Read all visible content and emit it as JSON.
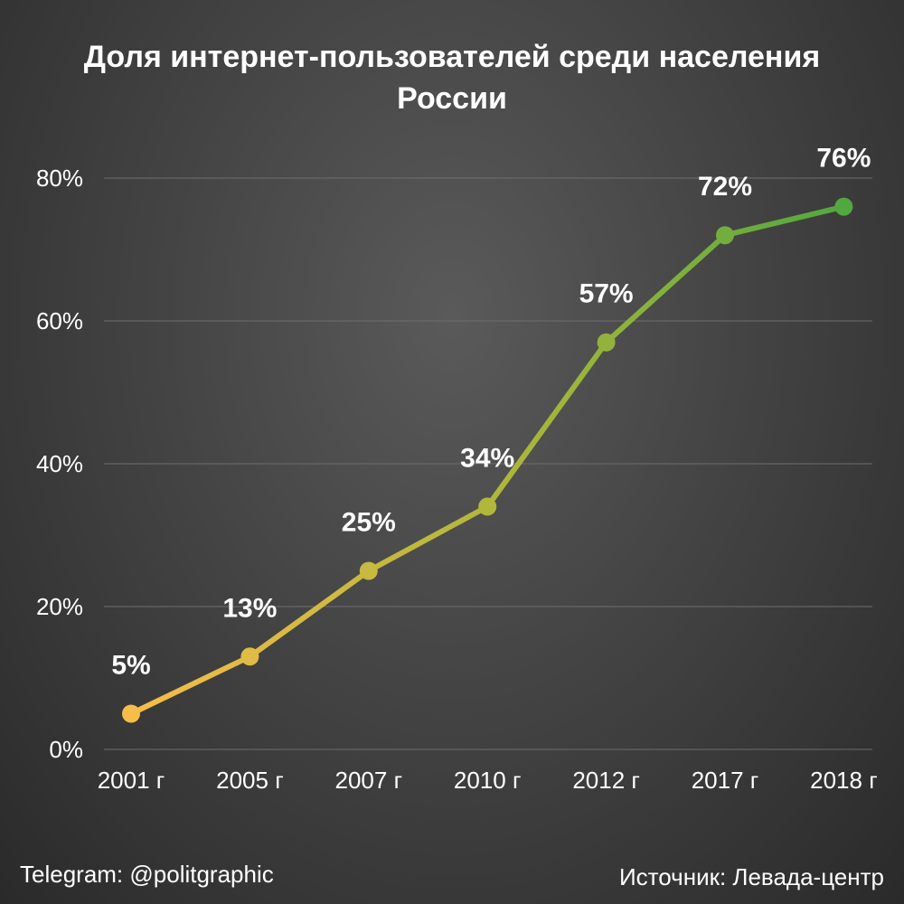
{
  "title": {
    "line1": "Доля интернет-пользователей среди населения",
    "line2": "России"
  },
  "footer": {
    "left": "Telegram: @politgraphic",
    "right": "Источник: Левада-центр"
  },
  "chart_data": {
    "type": "line",
    "title": "Доля интернет-пользователей среди населения России",
    "categories": [
      "2001 г",
      "2005 г",
      "2007 г",
      "2010 г",
      "2012 г",
      "2017 г",
      "2018 г"
    ],
    "values": [
      5,
      13,
      25,
      34,
      57,
      72,
      76
    ],
    "data_labels": [
      "5%",
      "13%",
      "25%",
      "34%",
      "57%",
      "72%",
      "76%"
    ],
    "yticks": [
      "0%",
      "20%",
      "40%",
      "60%",
      "80%"
    ],
    "ytick_values": [
      0,
      20,
      40,
      60,
      80
    ],
    "ylim": [
      0,
      80
    ],
    "grid": true,
    "legend": "none",
    "colors": {
      "start": "#f7bd4a",
      "mid": "#aab63a",
      "end": "#52a83e",
      "grid": "#6e6e6e",
      "text": "#ffffff"
    }
  }
}
